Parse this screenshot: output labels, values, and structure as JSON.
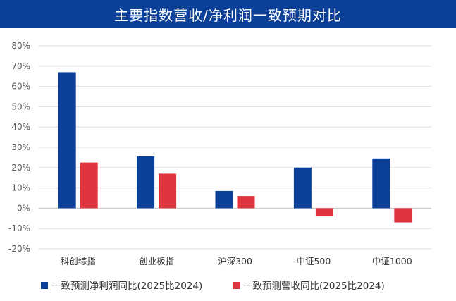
{
  "title": "主要指数营收/净利润一致预期对比",
  "chart_data": {
    "type": "bar",
    "categories": [
      "科创综指",
      "创业板指",
      "沪深300",
      "中证500",
      "中证1000"
    ],
    "series": [
      {
        "name": "一致预测净利润同比(2025比2024)",
        "color": "#0b3f98",
        "values": [
          67,
          25.5,
          8.5,
          20,
          24.5
        ]
      },
      {
        "name": "一致预测营收同比(2025比2024)",
        "color": "#e0353f",
        "values": [
          22.5,
          17,
          6,
          -4,
          -7
        ]
      }
    ],
    "ylim": [
      -20,
      80
    ],
    "yticks": [
      -20,
      -10,
      0,
      10,
      20,
      30,
      40,
      50,
      60,
      70,
      80
    ],
    "y_tick_format": "percent",
    "grid": true,
    "legend_position": "bottom-left",
    "xlabel": "",
    "ylabel": ""
  }
}
